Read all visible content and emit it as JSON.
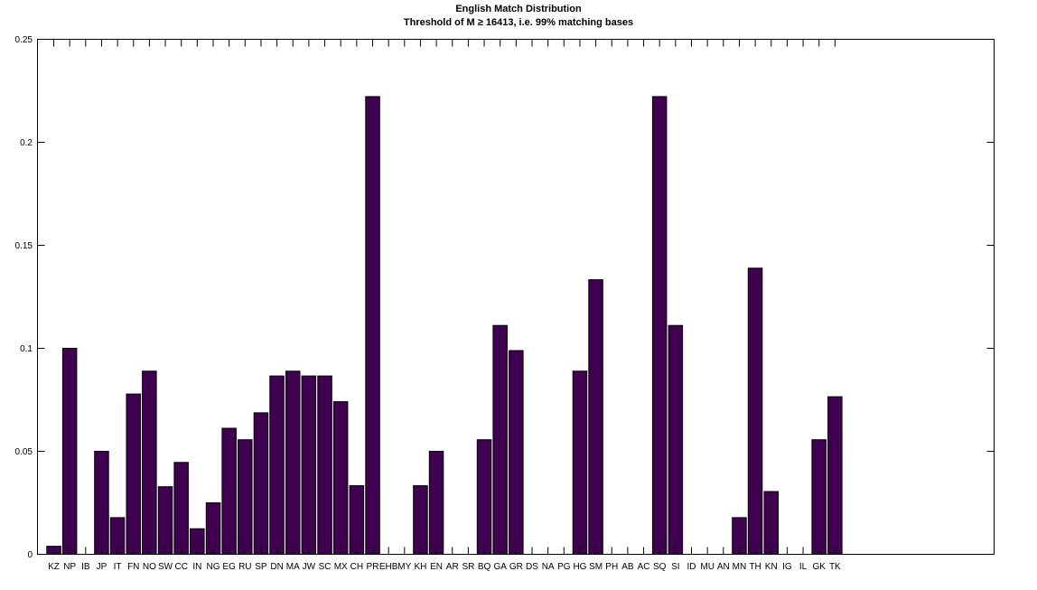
{
  "chart_data": {
    "type": "bar",
    "title": "English Match Distribution",
    "subtitle": "Threshold of M ≥ 16413, i.e. 99% matching bases",
    "xlabel": "",
    "ylabel": "",
    "ylim": [
      0,
      0.25
    ],
    "yticks": [
      "0",
      "0.05",
      "0.1",
      "0.15",
      "0.2",
      "0.25"
    ],
    "grid": false,
    "bar_color": "#400050",
    "categories": [
      "KZ",
      "NP",
      "IB",
      "JP",
      "IT",
      "FN",
      "NO",
      "SW",
      "CC",
      "IN",
      "NG",
      "EG",
      "RU",
      "SP",
      "DN",
      "MA",
      "JW",
      "SC",
      "MX",
      "CH",
      "PR",
      "EHB",
      "MY",
      "KH",
      "EN",
      "AR",
      "SR",
      "BQ",
      "GA",
      "GR",
      "DS",
      "NA",
      "PG",
      "HG",
      "SM",
      "PH",
      "AB",
      "AC",
      "SQ",
      "SI",
      "ID",
      "MU",
      "AN",
      "MN",
      "TH",
      "KN",
      "IG",
      "IL",
      "GK",
      "TK"
    ],
    "values": [
      0.0039,
      0.1,
      0,
      0.05,
      0.0178,
      0.0778,
      0.0889,
      0.0328,
      0.0446,
      0.0124,
      0.025,
      0.0612,
      0.0556,
      0.0687,
      0.0866,
      0.0889,
      0.0866,
      0.0866,
      0.0741,
      0.0333,
      0.2222,
      0,
      0,
      0.0333,
      0.05,
      0,
      0,
      0.0556,
      0.1111,
      0.0989,
      0,
      0,
      0,
      0.0889,
      0.1333,
      0,
      0,
      0,
      0.2222,
      0.1111,
      0,
      0,
      0,
      0.0178,
      0.1389,
      0.0305,
      0,
      0,
      0.0556,
      0.0765
    ]
  }
}
